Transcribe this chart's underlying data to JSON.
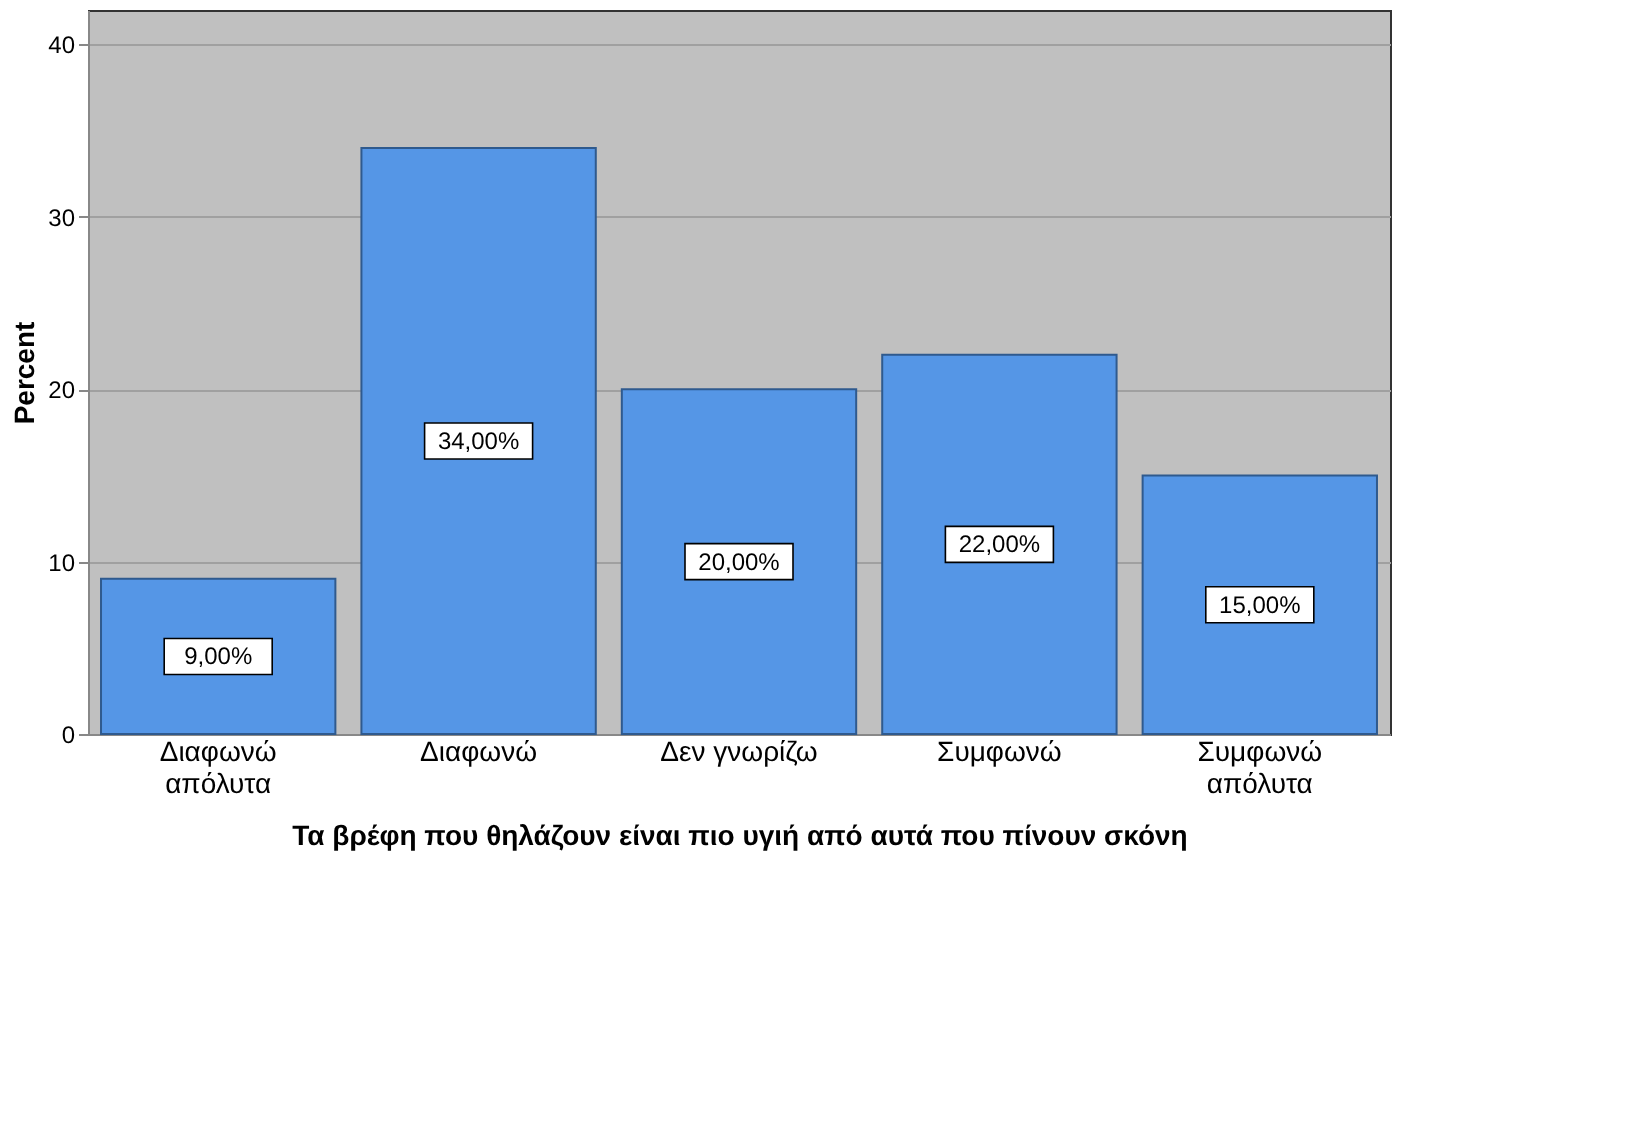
{
  "chart_data": {
    "type": "bar",
    "xlabel": "Τα βρέφη που θηλάζουν είναι πιο υγιή από αυτά που πίνουν σκόνη",
    "ylabel": "Percent",
    "categories": [
      "Διαφωνώ απόλυτα",
      "Διαφωνώ",
      "Δεν γνωρίζω",
      "Συμφωνώ",
      "Συμφωνώ απόλυτα"
    ],
    "values": [
      9,
      34,
      20,
      22,
      15
    ],
    "value_labels": [
      "9,00%",
      "34,00%",
      "20,00%",
      "22,00%",
      "15,00%"
    ],
    "color": "#5596e6",
    "ylim": [
      0,
      42
    ],
    "yticks": [
      0,
      10,
      20,
      30,
      40
    ],
    "grid": "y"
  }
}
